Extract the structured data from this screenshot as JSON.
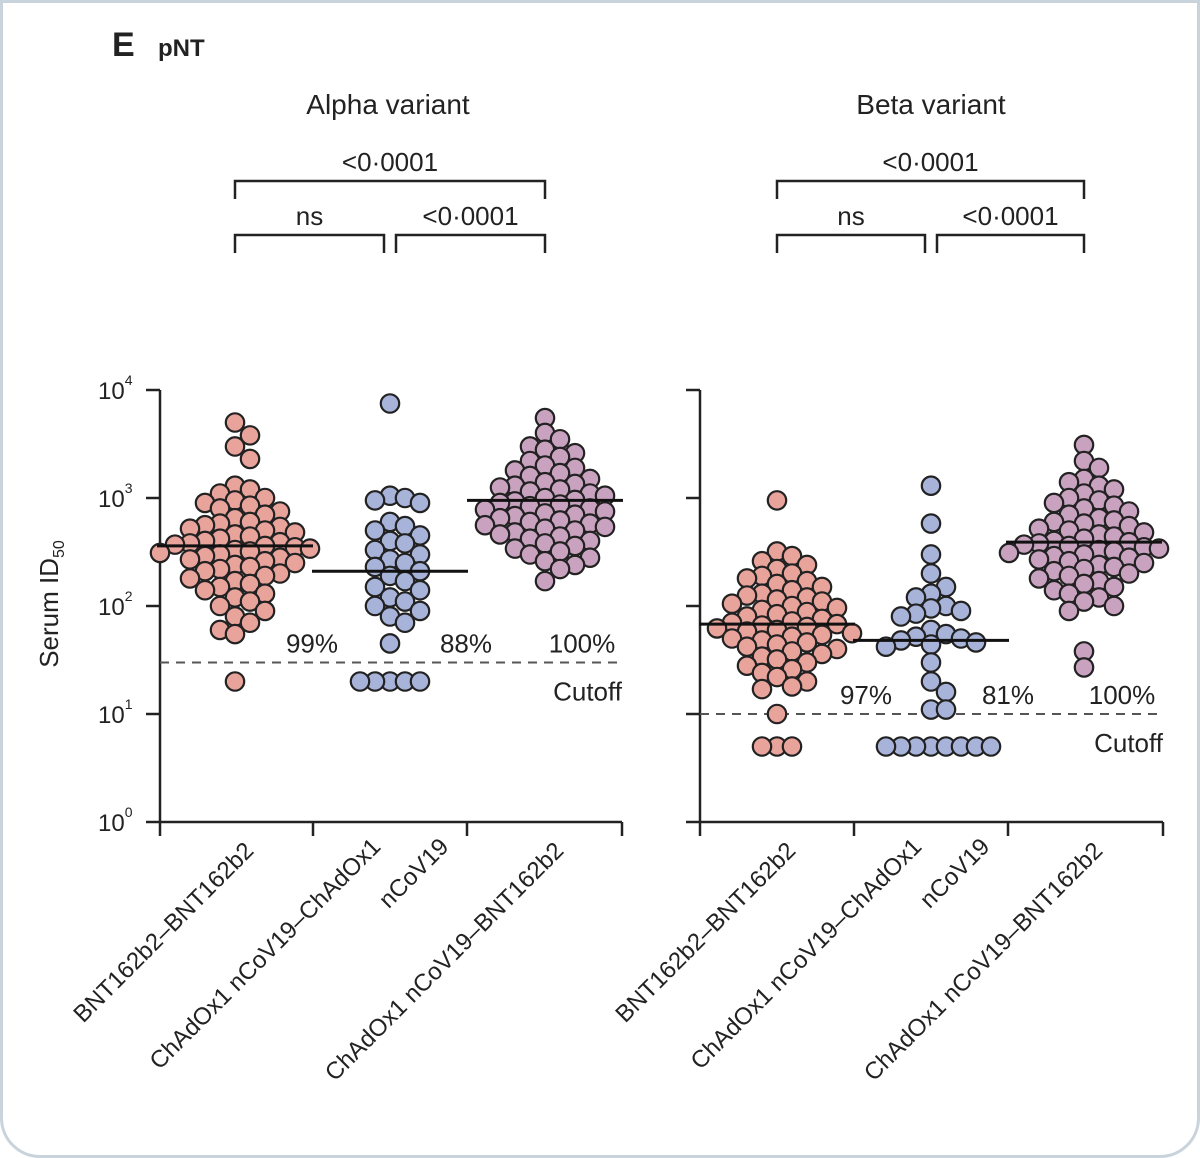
{
  "figure": {
    "panel_letter": "E",
    "panel_name": "pNT"
  },
  "chart_data": [
    {
      "type": "scatter",
      "title": "Alpha variant",
      "ylabel": "Serum ID50",
      "yscale": "log10",
      "ylim": [
        1,
        10000
      ],
      "yticks": [
        {
          "exp": 0,
          "label": "10",
          "sup": "0"
        },
        {
          "exp": 1,
          "label": "10",
          "sup": "1"
        },
        {
          "exp": 2,
          "label": "10",
          "sup": "2"
        },
        {
          "exp": 3,
          "label": "10",
          "sup": "3"
        },
        {
          "exp": 4,
          "label": "10",
          "sup": "4"
        }
      ],
      "cutoff": {
        "value": 30,
        "label": "Cutoff"
      },
      "comparisons": [
        {
          "from": 0,
          "to": 2,
          "label": "<0·0001",
          "level": 2
        },
        {
          "from": 0,
          "to": 1,
          "label": "ns",
          "level": 1
        },
        {
          "from": 1,
          "to": 2,
          "label": "<0·0001",
          "level": 1
        }
      ],
      "groups": [
        {
          "name": "BNT162b2–BNT162b2",
          "color": "#e8a39b",
          "median": 360,
          "percent_above_cutoff": "99%",
          "points": [
            5000,
            3800,
            3000,
            2300,
            1300,
            1200,
            1100,
            1000,
            950,
            900,
            850,
            800,
            750,
            700,
            650,
            600,
            580,
            560,
            540,
            520,
            500,
            480,
            460,
            440,
            420,
            400,
            390,
            380,
            370,
            360,
            350,
            340,
            330,
            320,
            310,
            300,
            290,
            280,
            270,
            260,
            250,
            240,
            230,
            220,
            210,
            200,
            190,
            180,
            170,
            160,
            150,
            140,
            130,
            120,
            110,
            100,
            90,
            80,
            70,
            60,
            55,
            20
          ]
        },
        {
          "name": "ChAdOx1 nCoV19–ChAdOx1 nCoV19",
          "color": "#a7b3d8",
          "median": 210,
          "percent_above_cutoff": "88%",
          "points": [
            7500,
            1050,
            1000,
            950,
            900,
            600,
            550,
            500,
            450,
            400,
            380,
            330,
            300,
            270,
            250,
            230,
            210,
            190,
            170,
            150,
            140,
            120,
            110,
            100,
            90,
            80,
            70,
            45,
            20,
            20,
            20,
            20,
            20
          ]
        },
        {
          "name": "ChAdOx1 nCoV19–BNT162b2",
          "color": "#c9a2c0",
          "median": 950,
          "percent_above_cutoff": "100%",
          "points": [
            5500,
            4000,
            3500,
            3000,
            2800,
            2600,
            2400,
            2200,
            2000,
            1900,
            1800,
            1700,
            1600,
            1500,
            1400,
            1350,
            1300,
            1250,
            1200,
            1150,
            1100,
            1050,
            1000,
            960,
            930,
            900,
            870,
            840,
            800,
            780,
            750,
            720,
            700,
            680,
            650,
            620,
            600,
            580,
            560,
            540,
            520,
            500,
            480,
            460,
            440,
            420,
            400,
            380,
            360,
            340,
            320,
            300,
            280,
            260,
            240,
            220,
            170
          ]
        }
      ]
    },
    {
      "type": "scatter",
      "title": "Beta variant",
      "ylabel": "Serum ID50",
      "yscale": "log10",
      "ylim": [
        1,
        10000
      ],
      "cutoff": {
        "value": 10,
        "label": "Cutoff"
      },
      "comparisons": [
        {
          "from": 0,
          "to": 2,
          "label": "<0·0001",
          "level": 2
        },
        {
          "from": 0,
          "to": 1,
          "label": "ns",
          "level": 1
        },
        {
          "from": 1,
          "to": 2,
          "label": "<0·0001",
          "level": 1
        }
      ],
      "groups": [
        {
          "name": "BNT162b2–BNT162b2",
          "color": "#e8a39b",
          "median": 68,
          "percent_above_cutoff": "97%",
          "points": [
            950,
            320,
            290,
            260,
            240,
            220,
            200,
            190,
            180,
            170,
            160,
            150,
            140,
            130,
            125,
            120,
            115,
            110,
            105,
            100,
            96,
            92,
            88,
            84,
            80,
            76,
            72,
            70,
            68,
            66,
            64,
            62,
            60,
            58,
            56,
            54,
            52,
            50,
            48,
            46,
            44,
            42,
            40,
            38,
            36,
            34,
            32,
            30,
            28,
            26,
            24,
            22,
            20,
            18,
            17,
            10,
            5,
            5,
            5
          ]
        },
        {
          "name": "ChAdOx1 nCoV19–ChAdOx1 nCoV19",
          "color": "#a7b3d8",
          "median": 48,
          "percent_above_cutoff": "81%",
          "points": [
            1300,
            580,
            300,
            200,
            150,
            130,
            120,
            100,
            95,
            90,
            85,
            80,
            60,
            55,
            52,
            50,
            48,
            46,
            44,
            42,
            30,
            20,
            16,
            11,
            11,
            5,
            5,
            5,
            5,
            5,
            5,
            5,
            5
          ]
        },
        {
          "name": "ChAdOx1 nCoV19–BNT162b2",
          "color": "#c9a2c0",
          "median": 390,
          "percent_above_cutoff": "100%",
          "points": [
            3100,
            2200,
            1900,
            1500,
            1400,
            1300,
            1200,
            1100,
            1000,
            950,
            900,
            850,
            800,
            750,
            700,
            650,
            620,
            600,
            580,
            550,
            520,
            500,
            480,
            460,
            440,
            420,
            400,
            390,
            380,
            370,
            360,
            350,
            340,
            330,
            320,
            310,
            300,
            290,
            280,
            270,
            260,
            250,
            240,
            230,
            220,
            210,
            200,
            190,
            180,
            170,
            160,
            150,
            140,
            130,
            120,
            110,
            100,
            90,
            38,
            27
          ]
        }
      ]
    }
  ]
}
